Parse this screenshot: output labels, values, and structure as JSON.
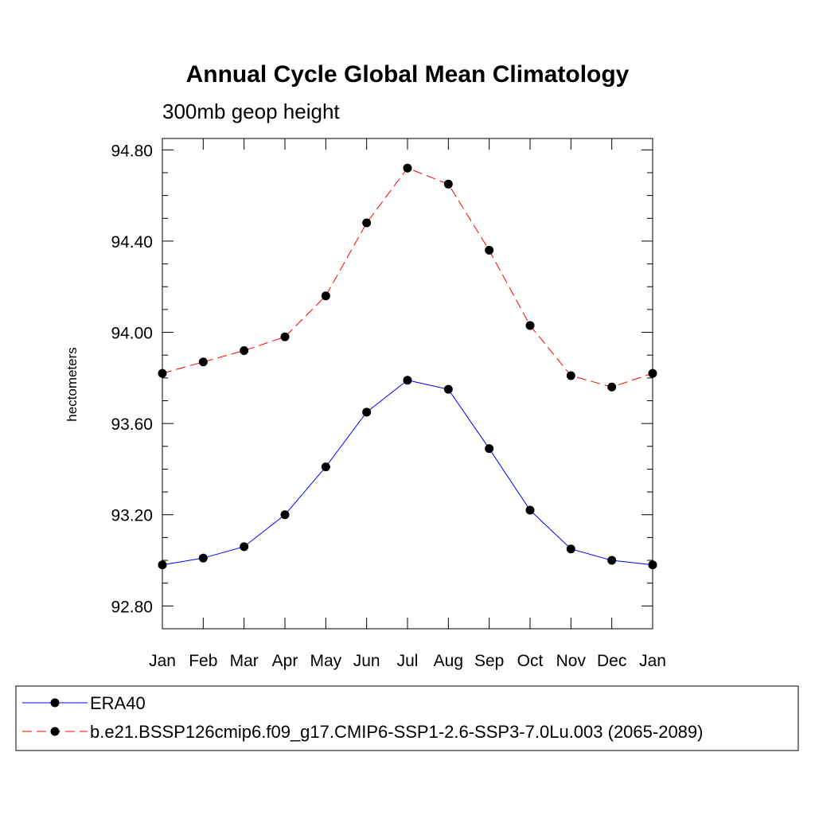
{
  "chart_data": {
    "type": "line",
    "title": "Annual Cycle Global Mean Climatology",
    "subtitle": "300mb geop height",
    "ylabel": "hectometers",
    "xlabel": "",
    "categories": [
      "Jan",
      "Feb",
      "Mar",
      "Apr",
      "May",
      "Jun",
      "Jul",
      "Aug",
      "Sep",
      "Oct",
      "Nov",
      "Dec",
      "Jan"
    ],
    "ylim": [
      92.7,
      94.85
    ],
    "yticks": [
      "92.80",
      "93.20",
      "93.60",
      "94.00",
      "94.40",
      "94.80"
    ],
    "ytick_values": [
      92.8,
      93.2,
      93.6,
      94.0,
      94.4,
      94.8
    ],
    "y_minor_step": 0.1,
    "grid": false,
    "legend_position": "bottom",
    "series": [
      {
        "name": "ERA40",
        "color": "#0000ff",
        "dash": "solid",
        "marker": "filled-circle",
        "values": [
          92.98,
          93.01,
          93.06,
          93.2,
          93.41,
          93.65,
          93.79,
          93.75,
          93.49,
          93.22,
          93.05,
          93.0,
          92.98
        ]
      },
      {
        "name": "b.e21.BSSP126cmip6.f09_g17.CMIP6-SSP1-2.6-SSP3-7.0Lu.003 (2065-2089)",
        "color": "#ff0000",
        "dash": "dashed",
        "marker": "filled-circle",
        "values": [
          93.82,
          93.87,
          93.92,
          93.98,
          94.16,
          94.48,
          94.72,
          94.65,
          94.36,
          94.03,
          93.81,
          93.76,
          93.82
        ]
      }
    ]
  }
}
